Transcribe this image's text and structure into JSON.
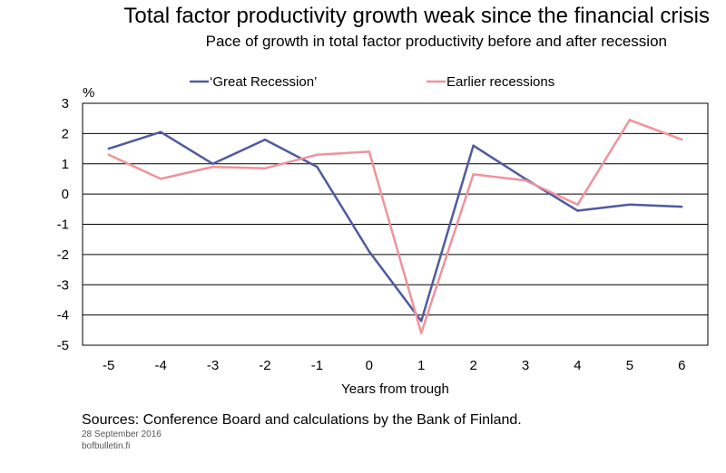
{
  "header": {
    "title": "Total factor productivity growth weak since the financial crisis",
    "subtitle": "Pace of growth in total factor productivity before and after recession"
  },
  "footer": {
    "source": "Sources: Conference Board and calculations by the Bank of Finland.",
    "date": "28 September 2016",
    "site": "bofbulletin.fi"
  },
  "chart_data": {
    "type": "line",
    "title": "Total factor productivity growth weak since the financial crisis",
    "subtitle": "Pace of growth in total factor productivity before and after recession",
    "xlabel": "Years from trough",
    "ylabel": "%",
    "x": [
      -5,
      -4,
      -3,
      -2,
      -1,
      0,
      1,
      2,
      3,
      4,
      5,
      6
    ],
    "ylim": [
      -5,
      3
    ],
    "yticks": [
      3,
      2,
      1,
      0,
      -1,
      -2,
      -3,
      -4,
      -5
    ],
    "grid": true,
    "legend_position": "top",
    "series": [
      {
        "name": "‘Great Recession’",
        "color": "#4f5aa0",
        "values": [
          1.5,
          2.05,
          1.0,
          1.8,
          0.9,
          -1.9,
          -4.2,
          1.6,
          0.5,
          -0.55,
          -0.35,
          -0.42
        ]
      },
      {
        "name": "Earlier recessions",
        "color": "#f0939a",
        "values": [
          1.3,
          0.5,
          0.9,
          0.85,
          1.3,
          1.4,
          -4.6,
          0.65,
          0.45,
          -0.35,
          2.45,
          1.8
        ]
      }
    ]
  }
}
